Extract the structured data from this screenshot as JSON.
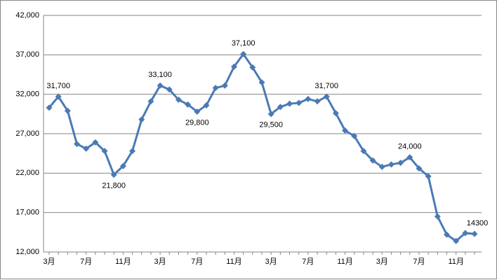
{
  "chart_data": {
    "type": "line",
    "categories": [
      "3月",
      null,
      null,
      null,
      "7月",
      null,
      null,
      null,
      "11月",
      null,
      null,
      null,
      "3月",
      null,
      null,
      null,
      "7月",
      null,
      null,
      null,
      "11月",
      null,
      null,
      null,
      "3月",
      null,
      null,
      null,
      "7月",
      null,
      null,
      null,
      "11月",
      null,
      null,
      null,
      "3月",
      null,
      null,
      null,
      "7月",
      null,
      null,
      null,
      "11月",
      null,
      null
    ],
    "series": [
      {
        "color": "#4a7ab5",
        "values": [
          30300,
          31700,
          29900,
          25700,
          25100,
          25900,
          24800,
          21800,
          22900,
          24800,
          28800,
          31100,
          33100,
          32600,
          31300,
          30700,
          29800,
          30600,
          32800,
          33100,
          35500,
          37100,
          35400,
          33500,
          29500,
          30400,
          30800,
          30900,
          31400,
          31100,
          31700,
          29600,
          27400,
          26700,
          24800,
          23600,
          22800,
          23100,
          23300,
          24000,
          22600,
          21600,
          16500,
          14200,
          13400,
          14400,
          14300
        ],
        "value_labels": [
          null,
          "31,700",
          null,
          null,
          null,
          null,
          null,
          "21,800",
          null,
          null,
          null,
          null,
          "33,100",
          null,
          null,
          null,
          "29,800",
          null,
          null,
          null,
          null,
          "37,100",
          null,
          null,
          "29,500",
          null,
          null,
          null,
          null,
          null,
          "31,700",
          null,
          null,
          null,
          null,
          null,
          null,
          null,
          null,
          "24,000",
          null,
          null,
          null,
          null,
          null,
          null,
          "14300"
        ]
      }
    ],
    "ylim": [
      12000,
      42000
    ],
    "yticks": [
      {
        "value": 12000,
        "label": "12,000"
      },
      {
        "value": 17000,
        "label": "17,000"
      },
      {
        "value": 22000,
        "label": "22,000"
      },
      {
        "value": 27000,
        "label": "27,000"
      },
      {
        "value": 32000,
        "label": "32,000"
      },
      {
        "value": 37000,
        "label": "37,000"
      },
      {
        "value": 42000,
        "label": "42,000"
      }
    ],
    "grid": true
  }
}
